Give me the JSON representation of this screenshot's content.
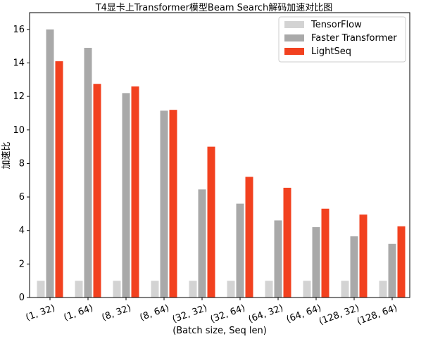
{
  "chart_data": {
    "type": "bar",
    "title": "T4显卡上Transformer模型Beam Search解码加速对比图",
    "xlabel": "(Batch size, Seq len)",
    "ylabel": "加速比",
    "categories": [
      "(1, 32)",
      "(1, 64)",
      "(8, 32)",
      "(8, 64)",
      "(32, 32)",
      "(32, 64)",
      "(64, 32)",
      "(64, 64)",
      "(128, 32)",
      "(128, 64)"
    ],
    "series": [
      {
        "name": "TensorFlow",
        "color": "#d3d3d3",
        "values": [
          1,
          1,
          1,
          1,
          1,
          1,
          1,
          1,
          1,
          1
        ]
      },
      {
        "name": "Faster Transformer",
        "color": "#a9a9a9",
        "values": [
          16.0,
          14.9,
          12.2,
          11.15,
          6.45,
          5.6,
          4.6,
          4.2,
          3.65,
          3.2
        ]
      },
      {
        "name": "LightSeq",
        "color": "#f2411f",
        "values": [
          14.1,
          12.75,
          12.6,
          11.2,
          9.0,
          7.2,
          6.55,
          5.3,
          4.95,
          4.25
        ]
      }
    ],
    "ylim": [
      0,
      17
    ],
    "yticks": [
      0,
      2,
      4,
      6,
      8,
      10,
      12,
      14,
      16
    ],
    "grid": false,
    "legend_position": "top-right"
  }
}
